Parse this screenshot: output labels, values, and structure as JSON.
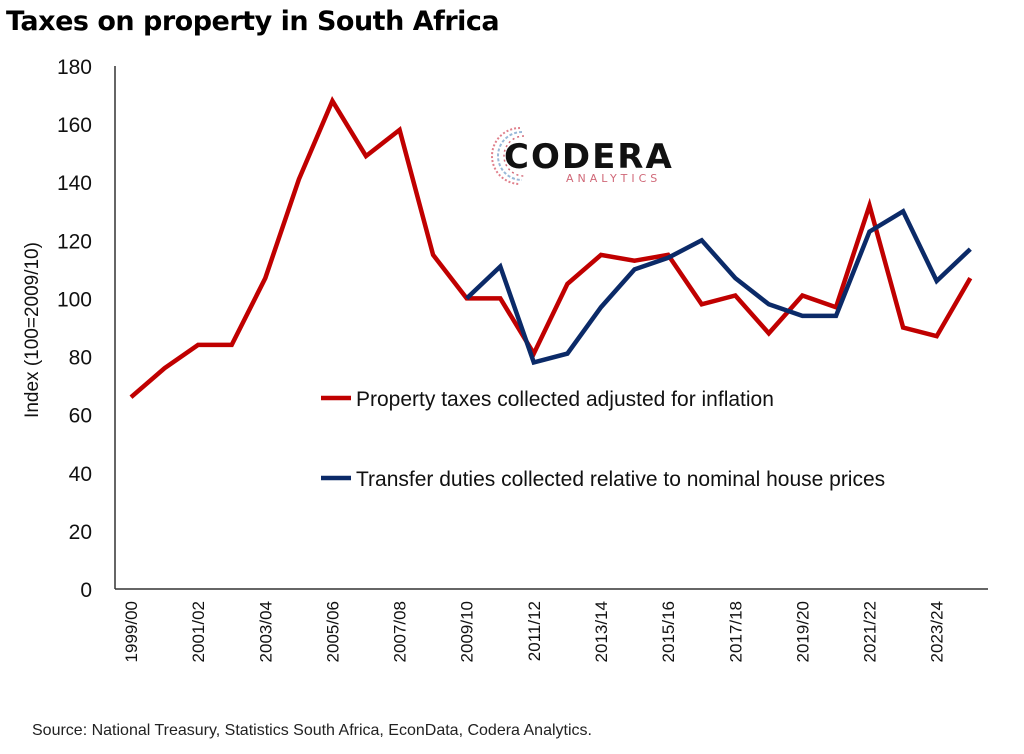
{
  "title": "Taxes on property in South Africa",
  "source": "Source: National Treasury, Statistics South Africa, EconData, Codera Analytics.",
  "logo": {
    "main": "CODERA",
    "sub": "ANALYTICS",
    "icon": "codera-c-circuit-icon"
  },
  "chart_data": {
    "type": "line",
    "title": "Taxes on property in South Africa",
    "xlabel": "",
    "ylabel": "Index (100=2009/10)",
    "ylim": [
      0,
      180
    ],
    "yticks": [
      0,
      20,
      40,
      60,
      80,
      100,
      120,
      140,
      160,
      180
    ],
    "grid": false,
    "legend_position": "center-right",
    "x": [
      "1999/00",
      "2000/01",
      "2001/02",
      "2002/03",
      "2003/04",
      "2004/05",
      "2005/06",
      "2006/07",
      "2007/08",
      "2008/09",
      "2009/10",
      "2010/11",
      "2011/12",
      "2012/13",
      "2013/14",
      "2014/15",
      "2015/16",
      "2016/17",
      "2017/18",
      "2018/19",
      "2019/20",
      "2020/21",
      "2021/22",
      "2022/23",
      "2023/24",
      "2024/25"
    ],
    "xtick_labels": [
      "1999/00",
      "2001/02",
      "2003/04",
      "2005/06",
      "2007/08",
      "2009/10",
      "2011/12",
      "2013/14",
      "2015/16",
      "2017/18",
      "2019/20",
      "2021/22",
      "2023/24"
    ],
    "series": [
      {
        "name": "Property taxes collected adjusted for inflation",
        "color": "#c00000",
        "values": [
          66,
          76,
          84,
          84,
          107,
          141,
          168,
          149,
          158,
          115,
          100,
          100,
          81,
          105,
          115,
          113,
          115,
          98,
          101,
          88,
          101,
          97,
          132,
          90,
          87,
          107
        ]
      },
      {
        "name": "Transfer duties collected relative to nominal house prices",
        "color": "#0b2a68",
        "values": [
          null,
          null,
          null,
          null,
          null,
          null,
          null,
          null,
          null,
          null,
          100,
          111,
          78,
          81,
          97,
          110,
          114,
          120,
          107,
          98,
          94,
          94,
          123,
          130,
          106,
          117
        ]
      }
    ]
  }
}
